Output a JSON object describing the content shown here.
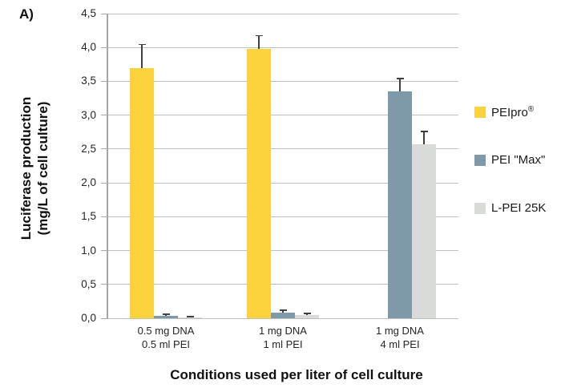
{
  "panel_label": "A)",
  "colors": {
    "background": "#ffffff",
    "gridline": "#bfbfbf",
    "axis": "#a6a6a6",
    "error_bar": "#404040",
    "text": "#262626",
    "title_text": "#111111"
  },
  "chart_data": {
    "type": "bar",
    "title": "",
    "xlabel": "Conditions used per liter of cell culture",
    "ylabel_line1": "Luciferase production",
    "ylabel_line2": "(mg/L of cell culture)",
    "categories": [
      [
        "0.5 mg DNA",
        "0.5 ml PEI"
      ],
      [
        "1 mg DNA",
        "1 ml PEI"
      ],
      [
        "1 mg DNA",
        "4 ml PEI"
      ]
    ],
    "series": [
      {
        "name": "PEIpro®",
        "color": "#fcd33d",
        "values": [
          3.7,
          3.98,
          null
        ],
        "errors_plus": [
          0.35,
          0.2,
          null
        ]
      },
      {
        "name": "PEI \"Max\"",
        "color": "#7e99a8",
        "values": [
          0.03,
          0.08,
          3.35
        ],
        "errors_plus": [
          0.03,
          0.04,
          0.2
        ]
      },
      {
        "name": "L-PEI 25K",
        "color": "#d9dbd8",
        "values": [
          0.015,
          0.05,
          2.57
        ],
        "errors_plus": [
          0.015,
          0.03,
          0.19
        ]
      }
    ],
    "ylim": [
      0,
      4.5
    ],
    "ytick_step": 0.5,
    "ytick_labels": [
      "0,0",
      "0,5",
      "1,0",
      "1,5",
      "2,0",
      "2,5",
      "3,0",
      "3,5",
      "4,0",
      "4,5"
    ],
    "grid": true,
    "legend_position": "right",
    "error_bars": "upper"
  }
}
